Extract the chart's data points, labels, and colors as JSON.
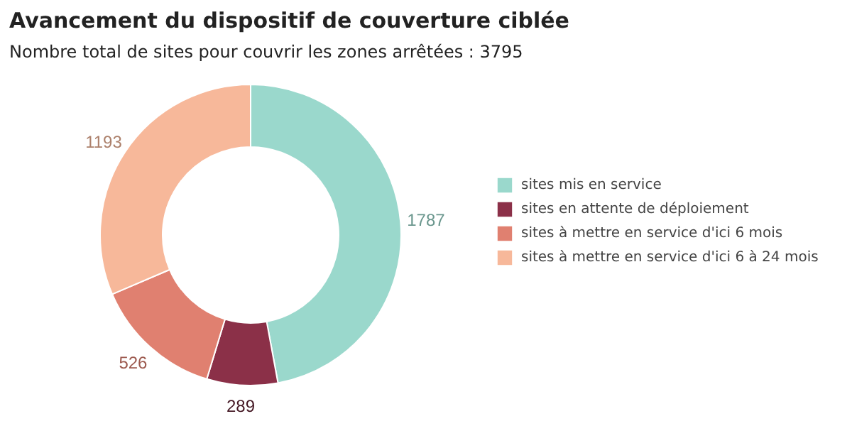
{
  "chart_data": {
    "type": "donut",
    "title": "Avancement du dispositif de couverture ciblée",
    "subtitle": "Nombre total de sites pour couvrir les zones arrêtées : 3795",
    "categories": [
      "sites mis en service",
      "sites en attente de déploiement",
      "sites à mettre en service d'ici 6 mois",
      "sites à mettre en service d'ici 6 à 24 mois"
    ],
    "values": [
      1787,
      289,
      526,
      1193
    ],
    "colors": [
      "#9ad8cc",
      "#8b3048",
      "#e08070",
      "#f7b89a"
    ],
    "data_labels": true,
    "legend": "right"
  }
}
